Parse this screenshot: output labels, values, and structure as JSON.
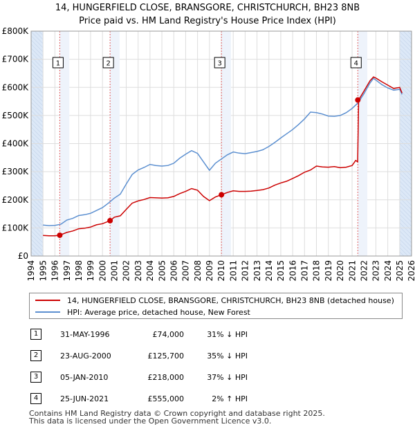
{
  "title_line1": "14, HUNGERFIELD CLOSE, BRANSGORE, CHRISTCHURCH, BH23 8NB",
  "title_line2": "Price paid vs. HM Land Registry's House Price Index (HPI)",
  "colors": {
    "property": "#cc0000",
    "hpi": "#5b8fd0",
    "shade": "#dce8f7",
    "vline": "#e06060",
    "grid": "#dddddd"
  },
  "chart_data": {
    "type": "line",
    "xlim": [
      1994,
      2026
    ],
    "ylim": [
      0,
      800000
    ],
    "yticks": [
      0,
      100000,
      200000,
      300000,
      400000,
      500000,
      600000,
      700000,
      800000
    ],
    "ytick_labels": [
      "£0",
      "£100K",
      "£200K",
      "£300K",
      "£400K",
      "£500K",
      "£600K",
      "£700K",
      "£800K"
    ],
    "xticks": [
      1994,
      1995,
      1996,
      1997,
      1998,
      1999,
      2000,
      2001,
      2002,
      2003,
      2004,
      2005,
      2006,
      2007,
      2008,
      2009,
      2010,
      2011,
      2012,
      2013,
      2014,
      2015,
      2016,
      2017,
      2018,
      2019,
      2020,
      2021,
      2022,
      2023,
      2024,
      2025,
      2026
    ],
    "xtick_labels": [
      "1994",
      "1995",
      "1996",
      "1997",
      "1998",
      "1999",
      "2000",
      "2001",
      "2002",
      "2003",
      "2004",
      "2005",
      "2006",
      "2007",
      "2008",
      "2009",
      "2010",
      "2011",
      "2012",
      "2013",
      "2014",
      "2015",
      "2016",
      "2017",
      "2018",
      "2019",
      "2020",
      "2021",
      "2022",
      "2023",
      "2024",
      "2025",
      "2026"
    ],
    "shaded_regions": [
      [
        1994,
        1995.0
      ],
      [
        2025.0,
        2026
      ]
    ],
    "series": [
      {
        "name": "14, HUNGERFIELD CLOSE, BRANSGORE, CHRISTCHURCH, BH23 8NB (detached house)",
        "x": [
          1995.0,
          1995.5,
          1996.0,
          1996.41,
          1997.0,
          1997.5,
          1998.0,
          1998.5,
          1999.0,
          1999.5,
          2000.0,
          2000.64,
          2001.0,
          2001.5,
          2002.0,
          2002.5,
          2003.0,
          2003.5,
          2004.0,
          2004.5,
          2005.0,
          2005.5,
          2006.0,
          2006.5,
          2007.0,
          2007.5,
          2008.0,
          2008.5,
          2009.0,
          2009.5,
          2010.01,
          2010.5,
          2011.0,
          2011.5,
          2012.0,
          2012.5,
          2013.0,
          2013.5,
          2014.0,
          2014.5,
          2015.0,
          2015.5,
          2016.0,
          2016.5,
          2017.0,
          2017.5,
          2018.0,
          2018.5,
          2019.0,
          2019.5,
          2020.0,
          2020.5,
          2021.0,
          2021.3,
          2021.47,
          2021.55,
          2022.0,
          2022.5,
          2022.8,
          2023.0,
          2023.5,
          2024.0,
          2024.5,
          2025.0,
          2025.2
        ],
        "y": [
          73000,
          72000,
          72000,
          74000,
          84000,
          89000,
          97000,
          99000,
          103000,
          111000,
          115000,
          125700,
          138000,
          143000,
          166000,
          188000,
          196000,
          201000,
          208000,
          207000,
          206000,
          207000,
          212000,
          222000,
          230000,
          240000,
          234000,
          212000,
          197000,
          210000,
          218000,
          226000,
          232000,
          230000,
          230000,
          231000,
          233000,
          236000,
          242000,
          252000,
          260000,
          266000,
          276000,
          286000,
          298000,
          306000,
          320000,
          317000,
          316000,
          318000,
          314000,
          316000,
          322000,
          340000,
          335000,
          555000,
          587000,
          623000,
          637000,
          633000,
          620000,
          608000,
          596000,
          600000,
          580000
        ]
      },
      {
        "name": "HPI: Average price, detached house, New Forest",
        "x": [
          1995.0,
          1995.5,
          1996.0,
          1996.5,
          1997.0,
          1997.5,
          1998.0,
          1998.5,
          1999.0,
          1999.5,
          2000.0,
          2000.5,
          2001.0,
          2001.5,
          2002.0,
          2002.5,
          2003.0,
          2003.5,
          2004.0,
          2004.5,
          2005.0,
          2005.5,
          2006.0,
          2006.5,
          2007.0,
          2007.5,
          2008.0,
          2008.5,
          2009.0,
          2009.5,
          2010.0,
          2010.5,
          2011.0,
          2011.5,
          2012.0,
          2012.5,
          2013.0,
          2013.5,
          2014.0,
          2014.5,
          2015.0,
          2015.5,
          2016.0,
          2016.5,
          2017.0,
          2017.5,
          2018.0,
          2018.5,
          2019.0,
          2019.5,
          2020.0,
          2020.5,
          2021.0,
          2021.5,
          2022.0,
          2022.5,
          2022.8,
          2023.0,
          2023.5,
          2024.0,
          2024.5,
          2025.0,
          2025.2
        ],
        "y": [
          110000,
          108000,
          109000,
          113000,
          128000,
          134000,
          144000,
          147000,
          152000,
          162000,
          172000,
          188000,
          206000,
          220000,
          256000,
          290000,
          306000,
          315000,
          326000,
          322000,
          320000,
          322000,
          330000,
          348000,
          362000,
          375000,
          365000,
          335000,
          305000,
          330000,
          345000,
          360000,
          370000,
          366000,
          364000,
          368000,
          372000,
          378000,
          390000,
          404000,
          420000,
          435000,
          450000,
          468000,
          488000,
          512000,
          510000,
          505000,
          498000,
          497000,
          500000,
          510000,
          525000,
          545000,
          578000,
          615000,
          632000,
          626000,
          610000,
          598000,
          590000,
          593000,
          575000
        ]
      }
    ],
    "sales": [
      {
        "label": "1",
        "x": 1996.41,
        "y": 74000
      },
      {
        "label": "2",
        "x": 2000.64,
        "y": 125700
      },
      {
        "label": "3",
        "x": 2010.01,
        "y": 218000
      },
      {
        "label": "4",
        "x": 2021.48,
        "y": 555000
      }
    ]
  },
  "legend": [
    {
      "label": "14, HUNGERFIELD CLOSE, BRANSGORE, CHRISTCHURCH, BH23 8NB (detached house)"
    },
    {
      "label": "HPI: Average price, detached house, New Forest"
    }
  ],
  "transactions": [
    {
      "num": "1",
      "date": "31-MAY-1996",
      "price": "£74,000",
      "hpi": "31% ↓ HPI"
    },
    {
      "num": "2",
      "date": "23-AUG-2000",
      "price": "£125,700",
      "hpi": "35% ↓ HPI"
    },
    {
      "num": "3",
      "date": "05-JAN-2010",
      "price": "£218,000",
      "hpi": "37% ↓ HPI"
    },
    {
      "num": "4",
      "date": "25-JUN-2021",
      "price": "£555,000",
      "hpi": "2% ↑ HPI"
    }
  ],
  "footer_line1": "Contains HM Land Registry data © Crown copyright and database right 2025.",
  "footer_line2": "This data is licensed under the Open Government Licence v3.0."
}
